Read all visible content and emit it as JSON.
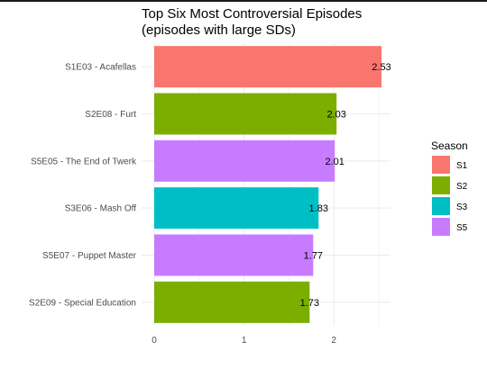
{
  "chart_data": {
    "type": "bar",
    "orientation": "horizontal",
    "title_line1": "Top Six Most Controversial Episodes",
    "title_line2": "(episodes with large SDs)",
    "xlabel": "",
    "ylabel": "",
    "xlim": [
      0,
      2.65
    ],
    "x_ticks": [
      "0",
      "1",
      "2"
    ],
    "grid": true,
    "legend_position": "right",
    "legend_title": "Season",
    "legend": [
      {
        "label": "S1",
        "color": "#F8766D"
      },
      {
        "label": "S2",
        "color": "#7CAE00"
      },
      {
        "label": "S3",
        "color": "#00BFC4"
      },
      {
        "label": "S5",
        "color": "#C77CFF"
      }
    ],
    "bars": [
      {
        "category": "S1E03 - Acafellas",
        "value": 2.53,
        "label": "2.53",
        "season": "S1"
      },
      {
        "category": "S2E08 - Furt",
        "value": 2.03,
        "label": "2.03",
        "season": "S2"
      },
      {
        "category": "S5E05 - The End of Twerk",
        "value": 2.01,
        "label": "2.01",
        "season": "S5"
      },
      {
        "category": "S3E06 - Mash Off",
        "value": 1.83,
        "label": "1.83",
        "season": "S3"
      },
      {
        "category": "S5E07 - Puppet Master",
        "value": 1.77,
        "label": "1.77",
        "season": "S5"
      },
      {
        "category": "S2E09 - Special Education",
        "value": 1.73,
        "label": "1.73",
        "season": "S2"
      }
    ]
  }
}
